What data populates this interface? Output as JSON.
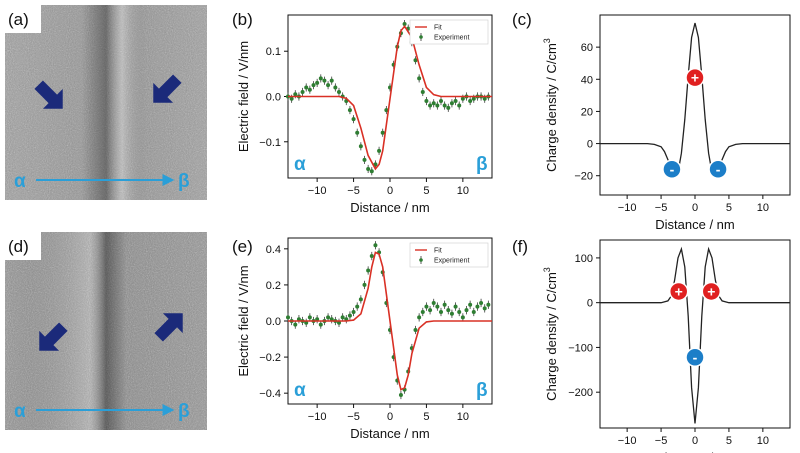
{
  "colors": {
    "fit": "#d93025",
    "experiment": "#2e7d32",
    "positive": "#e02020",
    "negative": "#1c7ec8",
    "arrow": "#1b2a7a",
    "greek": "#2a9fd8"
  },
  "chart_data": [
    {
      "panel": "(a)",
      "type": "image",
      "description_labels": {
        "start": "α",
        "end": "β"
      },
      "arrows": [
        "down-right",
        "down-left"
      ]
    },
    {
      "panel": "(b)",
      "type": "line",
      "xlabel": "Distance / nm",
      "ylabel": "Electric field / V/nm",
      "xlim": [
        -14,
        14
      ],
      "ylim": [
        -0.18,
        0.18
      ],
      "xticks": [
        -10,
        -5,
        0,
        5,
        10
      ],
      "yticks": [
        -0.1,
        0.0,
        0.1
      ],
      "ytick_labels": [
        "−0.1",
        "0.0",
        "0.1"
      ],
      "xtick_labels": [
        "−10",
        "−5",
        "0",
        "5",
        "10"
      ],
      "legend": {
        "fit": "Fit",
        "experiment": "Experiment"
      },
      "start_label": "α",
      "end_label": "β",
      "series": [
        {
          "name": "Fit",
          "x": [
            -14,
            -7,
            -6,
            -5,
            -4,
            -3,
            -2,
            -1.5,
            -1,
            0,
            1,
            1.5,
            2,
            3,
            4,
            5,
            6,
            7,
            14
          ],
          "values": [
            0,
            0,
            -0.004,
            -0.02,
            -0.07,
            -0.13,
            -0.16,
            -0.15,
            -0.12,
            -0.005,
            0.11,
            0.145,
            0.155,
            0.13,
            0.07,
            0.02,
            0.004,
            0,
            0
          ]
        },
        {
          "name": "Experiment",
          "x": [
            -14,
            -13.5,
            -13,
            -12.5,
            -12,
            -11.5,
            -11,
            -10.5,
            -10,
            -9.5,
            -9,
            -8.5,
            -8,
            -7.5,
            -7,
            -6.5,
            -6,
            -5.5,
            -5,
            -4.5,
            -4,
            -3.5,
            -3,
            -2.5,
            -2,
            -1.5,
            -1,
            -0.5,
            0,
            0.5,
            1,
            1.5,
            2,
            2.5,
            3,
            3.5,
            4,
            4.5,
            5,
            5.5,
            6,
            6.5,
            7,
            7.5,
            8,
            8.5,
            9,
            9.5,
            10,
            10.5,
            11,
            11.5,
            12,
            12.5,
            13,
            13.5
          ],
          "values": [
            0.0,
            -0.005,
            0.005,
            0.0,
            0.01,
            0.02,
            0.015,
            0.025,
            0.03,
            0.04,
            0.035,
            0.025,
            0.035,
            0.02,
            0.01,
            0.0,
            -0.01,
            -0.03,
            -0.05,
            -0.08,
            -0.11,
            -0.14,
            -0.16,
            -0.165,
            -0.15,
            -0.12,
            -0.08,
            -0.03,
            0.02,
            0.07,
            0.11,
            0.14,
            0.16,
            0.15,
            0.12,
            0.08,
            0.04,
            0.01,
            -0.01,
            -0.02,
            -0.015,
            -0.02,
            -0.01,
            -0.02,
            -0.025,
            -0.015,
            -0.01,
            -0.02,
            -0.005,
            0.0,
            -0.01,
            -0.005,
            0.0,
            0.0,
            -0.005,
            0.0
          ]
        }
      ]
    },
    {
      "panel": "(c)",
      "type": "line",
      "xlabel": "Distance / nm",
      "ylabel": "Charge density / C/cm",
      "ylabel_sup": "3",
      "xlim": [
        -14,
        14
      ],
      "ylim": [
        -32,
        80
      ],
      "xticks": [
        -10,
        -5,
        0,
        5,
        10
      ],
      "yticks": [
        -20,
        0,
        20,
        40,
        60
      ],
      "xtick_labels": [
        "−10",
        "−5",
        "0",
        "5",
        "10"
      ],
      "ytick_labels": [
        "−20",
        "0",
        "20",
        "40",
        "60"
      ],
      "markers": [
        {
          "x": 0,
          "y": 41,
          "sign": "+"
        },
        {
          "x": -3.4,
          "y": -16,
          "sign": "-"
        },
        {
          "x": 3.4,
          "y": -16,
          "sign": "-"
        }
      ],
      "series": [
        {
          "name": "Charge density",
          "x": [
            -14,
            -7,
            -6,
            -5,
            -4.5,
            -4,
            -3.5,
            -3,
            -2.5,
            -2,
            -1.5,
            -1,
            -0.5,
            0,
            0.5,
            1,
            1.5,
            2,
            2.5,
            3,
            3.5,
            4,
            4.5,
            5,
            6,
            7,
            14
          ],
          "values": [
            0,
            0,
            -0.5,
            -2,
            -5,
            -10,
            -15,
            -19,
            -18,
            -6,
            15,
            42,
            66,
            75,
            66,
            42,
            15,
            -6,
            -18,
            -19,
            -15,
            -10,
            -5,
            -2,
            -0.5,
            0,
            0
          ]
        }
      ]
    },
    {
      "panel": "(d)",
      "type": "image",
      "description_labels": {
        "start": "α",
        "end": "β"
      },
      "arrows": [
        "down-left",
        "up-right"
      ]
    },
    {
      "panel": "(e)",
      "type": "line",
      "xlabel": "Distance / nm",
      "ylabel": "Electric field / V/nm",
      "xlim": [
        -14,
        14
      ],
      "ylim": [
        -0.46,
        0.46
      ],
      "xticks": [
        -10,
        -5,
        0,
        5,
        10
      ],
      "yticks": [
        -0.4,
        -0.2,
        0.0,
        0.2,
        0.4
      ],
      "xtick_labels": [
        "−10",
        "−5",
        "0",
        "5",
        "10"
      ],
      "ytick_labels": [
        "−0.4",
        "−0.2",
        "0.0",
        "0.2",
        "0.4"
      ],
      "legend": {
        "fit": "Fit",
        "experiment": "Experiment"
      },
      "start_label": "α",
      "end_label": "β",
      "series": [
        {
          "name": "Fit",
          "x": [
            -14,
            -6,
            -5,
            -4,
            -3,
            -2.5,
            -2,
            -1.5,
            -1,
            0,
            1,
            1.5,
            2,
            2.5,
            3,
            4,
            5,
            6,
            14
          ],
          "values": [
            0,
            0,
            0.005,
            0.04,
            0.18,
            0.3,
            0.38,
            0.37,
            0.3,
            0.0,
            -0.3,
            -0.38,
            -0.37,
            -0.3,
            -0.18,
            -0.04,
            -0.005,
            0,
            0
          ]
        },
        {
          "name": "Experiment",
          "x": [
            -14,
            -13.5,
            -13,
            -12.5,
            -12,
            -11.5,
            -11,
            -10.5,
            -10,
            -9.5,
            -9,
            -8.5,
            -8,
            -7.5,
            -7,
            -6.5,
            -6,
            -5.5,
            -5,
            -4.5,
            -4,
            -3.5,
            -3,
            -2.5,
            -2,
            -1.5,
            -1,
            -0.5,
            0,
            0.5,
            1,
            1.5,
            2,
            2.5,
            3,
            3.5,
            4,
            4.5,
            5,
            5.5,
            6,
            6.5,
            7,
            7.5,
            8,
            8.5,
            9,
            9.5,
            10,
            10.5,
            11,
            11.5,
            12,
            12.5,
            13,
            13.5
          ],
          "values": [
            0.02,
            0.0,
            -0.02,
            0.01,
            0.0,
            -0.01,
            0.02,
            0.0,
            0.01,
            -0.02,
            0.0,
            0.02,
            0.01,
            0.0,
            -0.01,
            0.02,
            0.01,
            0.03,
            0.05,
            0.08,
            0.12,
            0.2,
            0.28,
            0.36,
            0.42,
            0.38,
            0.27,
            0.1,
            -0.05,
            -0.2,
            -0.33,
            -0.41,
            -0.38,
            -0.28,
            -0.15,
            -0.05,
            0.02,
            0.05,
            0.08,
            0.06,
            0.1,
            0.08,
            0.05,
            0.09,
            0.06,
            0.04,
            0.08,
            0.05,
            0.02,
            0.06,
            0.09,
            0.05,
            0.08,
            0.1,
            0.07,
            0.09
          ]
        }
      ]
    },
    {
      "panel": "(f)",
      "type": "line",
      "xlabel": "Distance / nm",
      "ylabel": "Charge density / C/cm",
      "ylabel_sup": "3",
      "xlim": [
        -14,
        14
      ],
      "ylim": [
        -280,
        140
      ],
      "xticks": [
        -10,
        -5,
        0,
        5,
        10
      ],
      "yticks": [
        -200,
        -100,
        0,
        100
      ],
      "xtick_labels": [
        "−10",
        "−5",
        "0",
        "5",
        "10"
      ],
      "ytick_labels": [
        "−200",
        "−100",
        "0",
        "100"
      ],
      "markers": [
        {
          "x": -2.4,
          "y": 25,
          "sign": "+"
        },
        {
          "x": 2.4,
          "y": 25,
          "sign": "+"
        },
        {
          "x": 0,
          "y": -122,
          "sign": "-"
        }
      ],
      "series": [
        {
          "name": "Charge density",
          "x": [
            -14,
            -5,
            -4,
            -3.5,
            -3,
            -2.5,
            -2,
            -1.5,
            -1,
            -0.5,
            0,
            0.5,
            1,
            1.5,
            2,
            2.5,
            3,
            3.5,
            4,
            5,
            14
          ],
          "values": [
            0,
            0,
            4,
            15,
            50,
            100,
            120,
            80,
            -30,
            -190,
            -270,
            -190,
            -30,
            80,
            120,
            100,
            50,
            15,
            4,
            0,
            0
          ]
        }
      ]
    }
  ]
}
